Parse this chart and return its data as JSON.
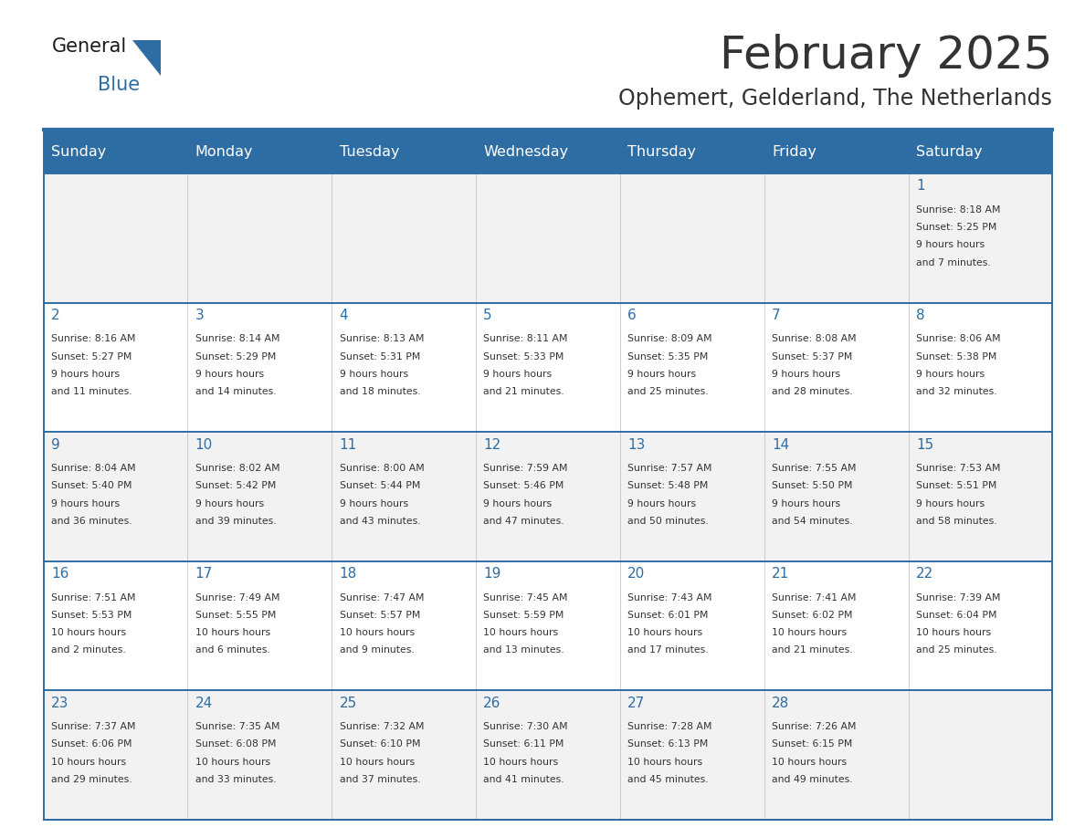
{
  "title": "February 2025",
  "subtitle": "Ophemert, Gelderland, The Netherlands",
  "days_of_week": [
    "Sunday",
    "Monday",
    "Tuesday",
    "Wednesday",
    "Thursday",
    "Friday",
    "Saturday"
  ],
  "header_bg": "#2E6DA4",
  "header_text_color": "#FFFFFF",
  "cell_bg_light": "#F2F2F2",
  "cell_bg_white": "#FFFFFF",
  "border_color": "#2E6DA4",
  "text_color": "#333333",
  "date_color": "#2E6DA4",
  "logo_general_color": "#1a1a1a",
  "logo_blue_color": "#2E6DA4",
  "calendar_data": [
    [
      null,
      null,
      null,
      null,
      null,
      null,
      {
        "day": 1,
        "sunrise": "8:18 AM",
        "sunset": "5:25 PM",
        "daylight": "9 hours and 7 minutes."
      }
    ],
    [
      {
        "day": 2,
        "sunrise": "8:16 AM",
        "sunset": "5:27 PM",
        "daylight": "9 hours and 11 minutes."
      },
      {
        "day": 3,
        "sunrise": "8:14 AM",
        "sunset": "5:29 PM",
        "daylight": "9 hours and 14 minutes."
      },
      {
        "day": 4,
        "sunrise": "8:13 AM",
        "sunset": "5:31 PM",
        "daylight": "9 hours and 18 minutes."
      },
      {
        "day": 5,
        "sunrise": "8:11 AM",
        "sunset": "5:33 PM",
        "daylight": "9 hours and 21 minutes."
      },
      {
        "day": 6,
        "sunrise": "8:09 AM",
        "sunset": "5:35 PM",
        "daylight": "9 hours and 25 minutes."
      },
      {
        "day": 7,
        "sunrise": "8:08 AM",
        "sunset": "5:37 PM",
        "daylight": "9 hours and 28 minutes."
      },
      {
        "day": 8,
        "sunrise": "8:06 AM",
        "sunset": "5:38 PM",
        "daylight": "9 hours and 32 minutes."
      }
    ],
    [
      {
        "day": 9,
        "sunrise": "8:04 AM",
        "sunset": "5:40 PM",
        "daylight": "9 hours and 36 minutes."
      },
      {
        "day": 10,
        "sunrise": "8:02 AM",
        "sunset": "5:42 PM",
        "daylight": "9 hours and 39 minutes."
      },
      {
        "day": 11,
        "sunrise": "8:00 AM",
        "sunset": "5:44 PM",
        "daylight": "9 hours and 43 minutes."
      },
      {
        "day": 12,
        "sunrise": "7:59 AM",
        "sunset": "5:46 PM",
        "daylight": "9 hours and 47 minutes."
      },
      {
        "day": 13,
        "sunrise": "7:57 AM",
        "sunset": "5:48 PM",
        "daylight": "9 hours and 50 minutes."
      },
      {
        "day": 14,
        "sunrise": "7:55 AM",
        "sunset": "5:50 PM",
        "daylight": "9 hours and 54 minutes."
      },
      {
        "day": 15,
        "sunrise": "7:53 AM",
        "sunset": "5:51 PM",
        "daylight": "9 hours and 58 minutes."
      }
    ],
    [
      {
        "day": 16,
        "sunrise": "7:51 AM",
        "sunset": "5:53 PM",
        "daylight": "10 hours and 2 minutes."
      },
      {
        "day": 17,
        "sunrise": "7:49 AM",
        "sunset": "5:55 PM",
        "daylight": "10 hours and 6 minutes."
      },
      {
        "day": 18,
        "sunrise": "7:47 AM",
        "sunset": "5:57 PM",
        "daylight": "10 hours and 9 minutes."
      },
      {
        "day": 19,
        "sunrise": "7:45 AM",
        "sunset": "5:59 PM",
        "daylight": "10 hours and 13 minutes."
      },
      {
        "day": 20,
        "sunrise": "7:43 AM",
        "sunset": "6:01 PM",
        "daylight": "10 hours and 17 minutes."
      },
      {
        "day": 21,
        "sunrise": "7:41 AM",
        "sunset": "6:02 PM",
        "daylight": "10 hours and 21 minutes."
      },
      {
        "day": 22,
        "sunrise": "7:39 AM",
        "sunset": "6:04 PM",
        "daylight": "10 hours and 25 minutes."
      }
    ],
    [
      {
        "day": 23,
        "sunrise": "7:37 AM",
        "sunset": "6:06 PM",
        "daylight": "10 hours and 29 minutes."
      },
      {
        "day": 24,
        "sunrise": "7:35 AM",
        "sunset": "6:08 PM",
        "daylight": "10 hours and 33 minutes."
      },
      {
        "day": 25,
        "sunrise": "7:32 AM",
        "sunset": "6:10 PM",
        "daylight": "10 hours and 37 minutes."
      },
      {
        "day": 26,
        "sunrise": "7:30 AM",
        "sunset": "6:11 PM",
        "daylight": "10 hours and 41 minutes."
      },
      {
        "day": 27,
        "sunrise": "7:28 AM",
        "sunset": "6:13 PM",
        "daylight": "10 hours and 45 minutes."
      },
      {
        "day": 28,
        "sunrise": "7:26 AM",
        "sunset": "6:15 PM",
        "daylight": "10 hours and 49 minutes."
      },
      null
    ]
  ]
}
